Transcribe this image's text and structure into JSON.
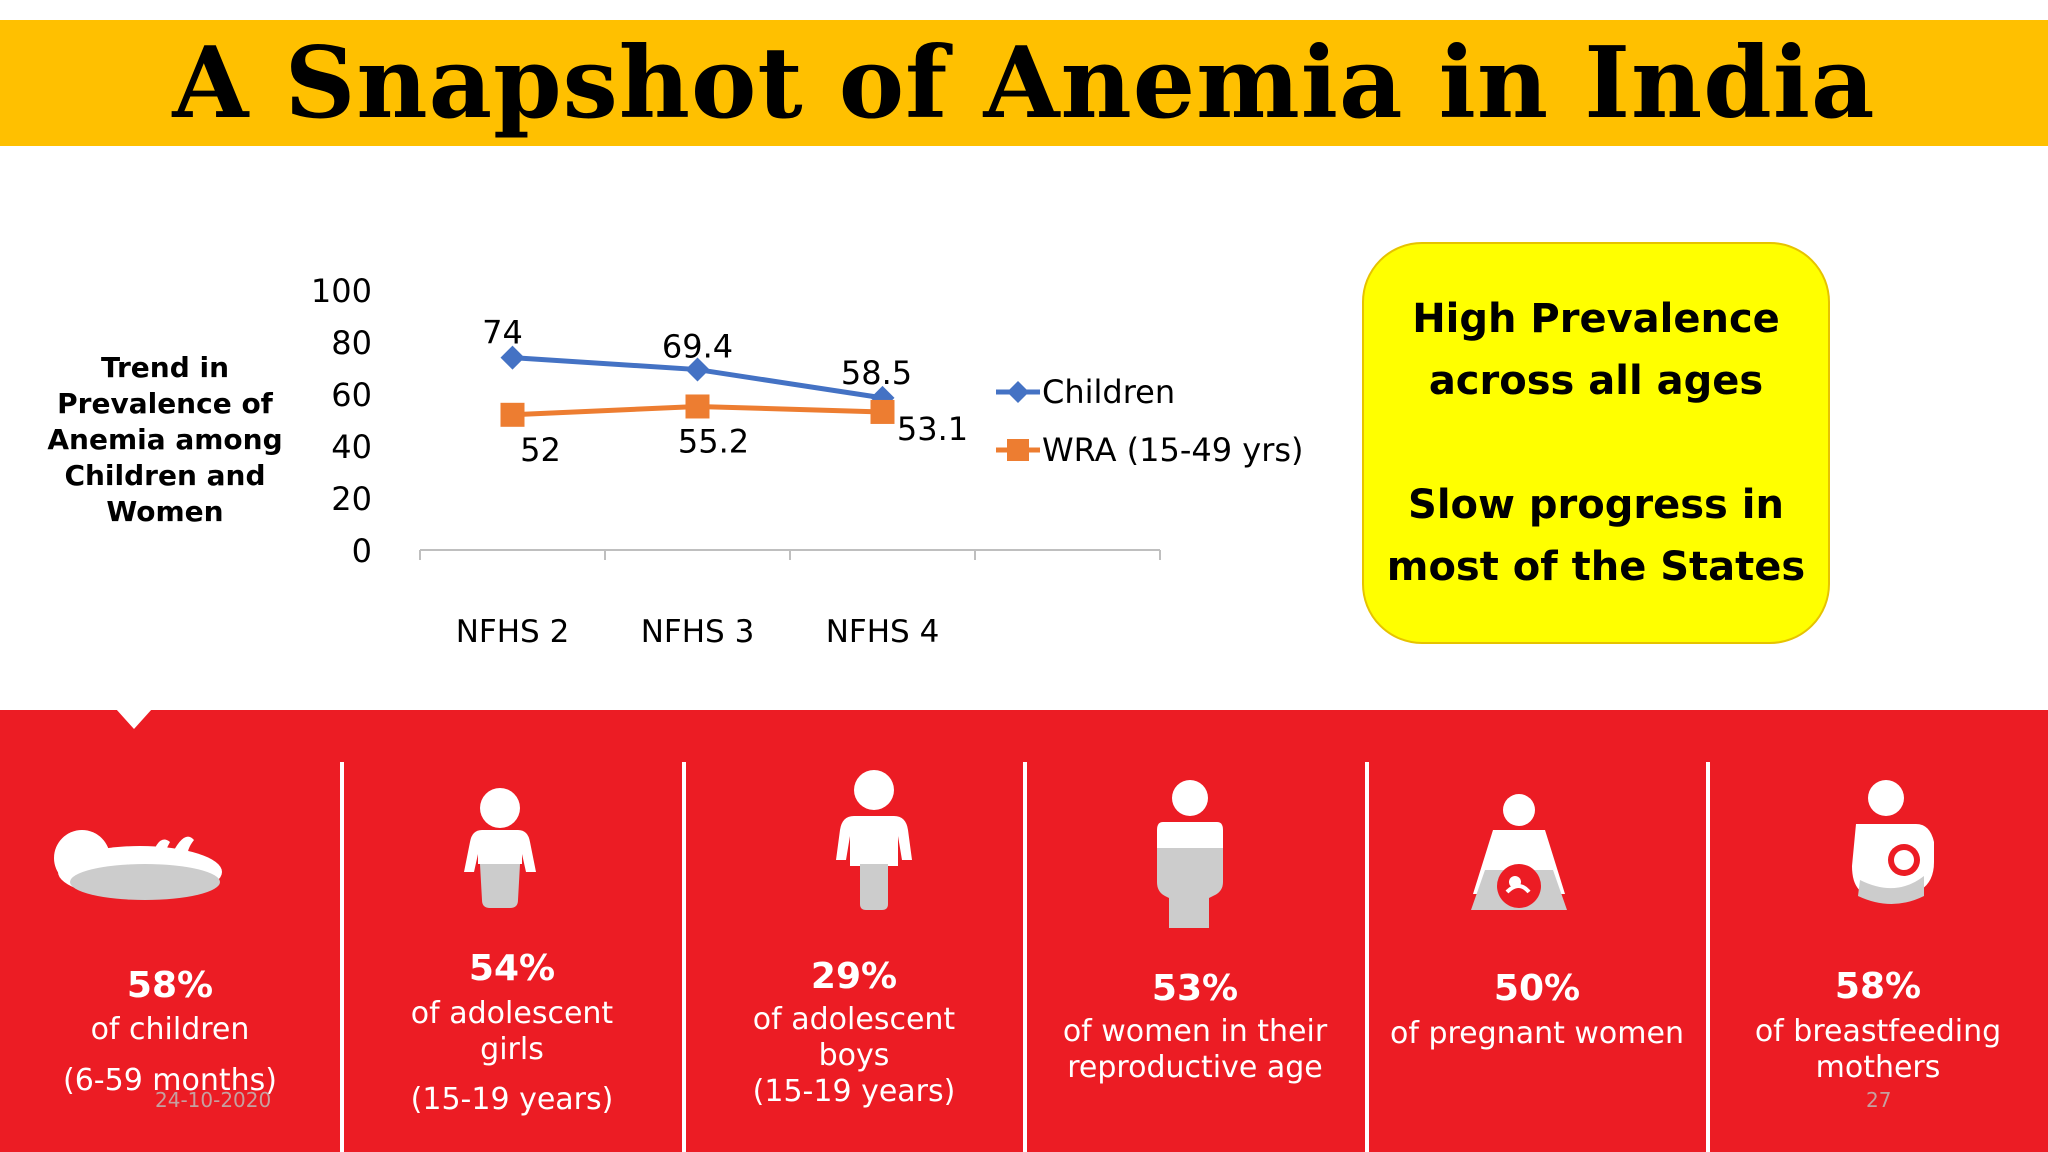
{
  "title": "A Snapshot of Anemia in India",
  "chart_side_title": "Trend in Prevalence of Anemia among Children and Women",
  "chart_data": {
    "type": "line",
    "categories": [
      "NFHS 2",
      "NFHS 3",
      "NFHS 4"
    ],
    "series": [
      {
        "name": "Children",
        "values": [
          74,
          69.4,
          58.5
        ],
        "color": "#4472c4",
        "marker": "diamond"
      },
      {
        "name": "WRA (15-49 yrs)",
        "values": [
          52,
          55.2,
          53.1
        ],
        "color": "#ed7d31",
        "marker": "square"
      }
    ],
    "ylim": [
      0,
      100
    ],
    "yticks": [
      "0",
      "20",
      "40",
      "60",
      "80",
      "100"
    ],
    "data_labels": {
      "series0": [
        "74",
        "69.4",
        "58.5"
      ],
      "series1": [
        "52",
        "55.2",
        "53.1"
      ]
    },
    "legend_position": "right",
    "grid": false
  },
  "highlight": {
    "line1": "High Prevalence",
    "line2": "across all ages",
    "line3": "Slow progress in",
    "line4": "most of the States"
  },
  "stats": [
    {
      "pct": "58%",
      "desc1": "of children",
      "desc2": "",
      "years": "(6-59 months)",
      "icon": "infant-icon"
    },
    {
      "pct": "54%",
      "desc1": "of adolescent",
      "desc2": "girls",
      "years": "(15-19 years)",
      "icon": "adolescent-girl-icon"
    },
    {
      "pct": "29%",
      "desc1": "of adolescent",
      "desc2": "boys",
      "years": "(15-19 years)",
      "icon": "adolescent-boy-icon"
    },
    {
      "pct": "53%",
      "desc1": "of women in their",
      "desc2": "reproductive age",
      "years": "",
      "icon": "woman-icon"
    },
    {
      "pct": "50%",
      "desc1": "of pregnant women",
      "desc2": "",
      "years": "",
      "icon": "pregnant-woman-icon"
    },
    {
      "pct": "58%",
      "desc1": "of breastfeeding",
      "desc2": "mothers",
      "years": "",
      "icon": "breastfeeding-mother-icon"
    }
  ],
  "footer": {
    "date": "24-10-2020",
    "page": "27"
  }
}
